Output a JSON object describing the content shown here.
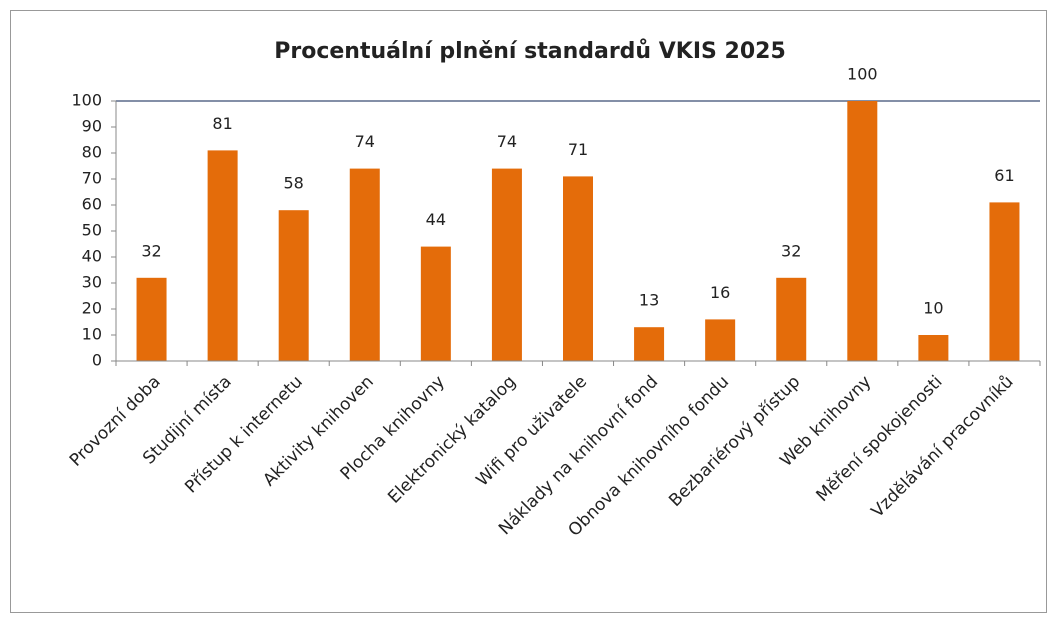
{
  "chart_data": {
    "type": "bar",
    "title": "Procentuální plnění standardů VKIS 2025",
    "categories": [
      "Provozní doba",
      "Studijní místa",
      "Přístup k internetu",
      "Aktivity knihoven",
      "Plocha knihovny",
      "Elektronický katalog",
      "Wifi pro uživatele",
      "Náklady na knihovní fond",
      "Obnova knihovního fondu",
      "Bezbariérový přístup",
      "Web knihovny",
      "Měření spokojenosti",
      "Vzdělávání pracovníků"
    ],
    "values": [
      32,
      81,
      58,
      74,
      44,
      74,
      71,
      13,
      16,
      32,
      100,
      10,
      61
    ],
    "color": "#e46c0a",
    "ylim": [
      0,
      100
    ],
    "yticks": [
      0,
      10,
      20,
      30,
      40,
      50,
      60,
      70,
      80,
      90,
      100
    ],
    "grid": false,
    "data_labels": true
  }
}
